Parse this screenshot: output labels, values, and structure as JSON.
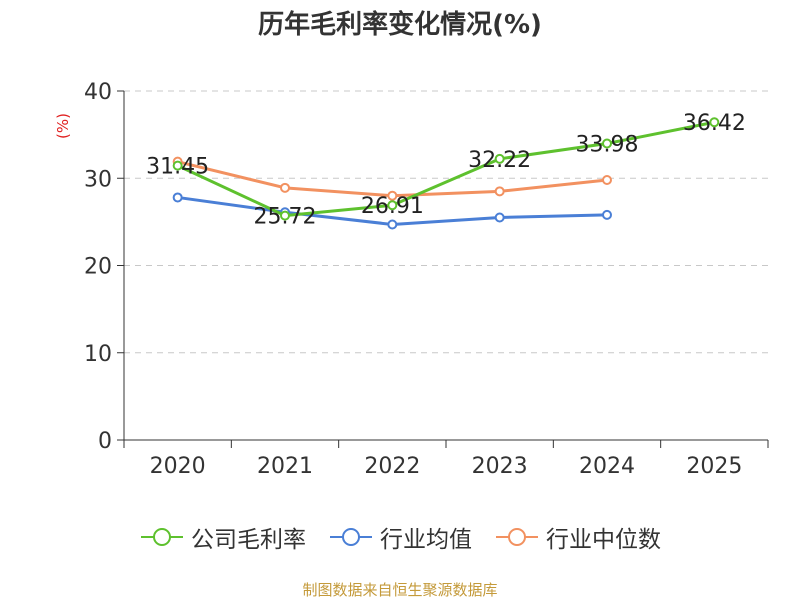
{
  "chart_data": {
    "type": "line",
    "title": "历年毛利率变化情况(%)",
    "ylabel": "(%)",
    "xlabel": "",
    "categories": [
      "2020",
      "2021",
      "2022",
      "2023",
      "2024",
      "2025"
    ],
    "ylim": [
      0,
      40
    ],
    "yticks": [
      0,
      10,
      20,
      30,
      40
    ],
    "grid": true,
    "legend_position": "bottom",
    "series": [
      {
        "name": "公司毛利率",
        "color": "#5ec12e",
        "values": [
          31.45,
          25.72,
          26.91,
          32.22,
          33.98,
          36.42
        ],
        "labels": [
          "31.45",
          "25.72",
          "26.91",
          "32.22",
          "33.98",
          "36.42"
        ]
      },
      {
        "name": "行业均值",
        "color": "#4a7fd6",
        "values": [
          27.8,
          26.1,
          24.7,
          25.5,
          25.8,
          null
        ]
      },
      {
        "name": "行业中位数",
        "color": "#f29160",
        "values": [
          31.9,
          28.9,
          28.0,
          28.5,
          29.8,
          null
        ]
      }
    ]
  },
  "source": "制图数据来自恒生聚源数据库"
}
